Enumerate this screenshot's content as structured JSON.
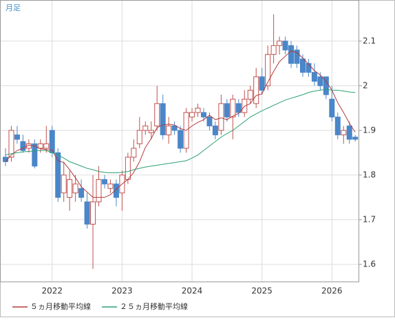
{
  "chart_data": {
    "type": "candlestick",
    "title": "月足",
    "categories": [
      null,
      null,
      null,
      null,
      null,
      null,
      null,
      null,
      "2022",
      null,
      null,
      null,
      null,
      null,
      null,
      null,
      null,
      null,
      null,
      null,
      "2023",
      null,
      null,
      null,
      null,
      null,
      null,
      null,
      null,
      null,
      null,
      null,
      "2024",
      null,
      null,
      null,
      null,
      null,
      null,
      null,
      null,
      null,
      null,
      null,
      "2025",
      null,
      null,
      null,
      null,
      null,
      null,
      null,
      null,
      null,
      null,
      null,
      "2026",
      null,
      null,
      null,
      null
    ],
    "open": [
      1.84,
      1.84,
      1.89,
      1.875,
      1.86,
      1.87,
      1.86,
      1.86,
      1.9,
      1.85,
      1.76,
      1.75,
      1.76,
      1.77,
      1.74,
      1.69,
      1.74,
      1.79,
      1.77,
      1.78,
      1.76,
      1.79,
      1.84,
      1.87,
      1.9,
      1.895,
      1.91,
      1.96,
      1.89,
      1.91,
      1.9,
      1.86,
      1.93,
      1.94,
      1.94,
      1.93,
      1.91,
      1.9,
      1.96,
      1.93,
      1.96,
      1.94,
      1.97,
      1.96,
      2.02,
      2.0,
      2.07,
      2.09,
      2.1,
      2.09,
      2.08,
      2.06,
      2.05,
      2.03,
      2.02,
      2.02,
      1.97,
      1.93,
      1.89,
      1.91,
      1.885
    ],
    "high": [
      1.86,
      1.91,
      1.91,
      1.89,
      1.88,
      1.88,
      1.88,
      1.91,
      1.91,
      1.86,
      1.83,
      1.81,
      1.8,
      1.79,
      1.76,
      1.8,
      1.82,
      1.8,
      1.79,
      1.79,
      1.81,
      1.85,
      1.88,
      1.93,
      1.92,
      1.92,
      2.0,
      1.98,
      1.93,
      1.92,
      1.91,
      1.95,
      1.95,
      1.96,
      1.95,
      1.94,
      1.92,
      1.98,
      1.97,
      1.98,
      1.97,
      1.99,
      2.0,
      2.04,
      2.04,
      2.09,
      2.16,
      2.11,
      2.11,
      2.1,
      2.09,
      2.07,
      2.06,
      2.05,
      2.03,
      2.02,
      2.0,
      1.94,
      1.91,
      1.92,
      1.89
    ],
    "low": [
      1.82,
      1.83,
      1.87,
      1.85,
      1.85,
      1.815,
      1.85,
      1.85,
      1.84,
      1.74,
      1.74,
      1.72,
      1.74,
      1.74,
      1.68,
      1.59,
      1.73,
      1.77,
      1.76,
      1.73,
      1.72,
      1.78,
      1.83,
      1.86,
      1.89,
      1.88,
      1.9,
      1.88,
      1.87,
      1.89,
      1.85,
      1.85,
      1.92,
      1.93,
      1.92,
      1.9,
      1.88,
      1.89,
      1.92,
      1.88,
      1.93,
      1.93,
      1.96,
      1.95,
      1.98,
      1.99,
      2.05,
      2.07,
      2.07,
      2.04,
      2.04,
      2.02,
      2.02,
      2.0,
      1.99,
      1.97,
      1.92,
      1.88,
      1.87,
      1.87,
      1.875
    ],
    "close": [
      1.83,
      1.9,
      1.88,
      1.855,
      1.87,
      1.82,
      1.87,
      1.87,
      1.85,
      1.75,
      1.8,
      1.79,
      1.78,
      1.75,
      1.69,
      1.74,
      1.79,
      1.78,
      1.78,
      1.75,
      1.8,
      1.84,
      1.86,
      1.9,
      1.91,
      1.9,
      1.96,
      1.89,
      1.91,
      1.9,
      1.86,
      1.94,
      1.94,
      1.95,
      1.93,
      1.91,
      1.89,
      1.96,
      1.93,
      1.97,
      1.94,
      1.97,
      1.99,
      2.02,
      1.99,
      2.07,
      2.09,
      2.1,
      2.08,
      2.05,
      2.05,
      2.03,
      2.03,
      2.01,
      2.0,
      1.98,
      1.93,
      1.89,
      1.9,
      1.88,
      1.88
    ],
    "up_color": "#c0504d",
    "down_color": "#4a86c8",
    "series": [
      {
        "name": "５ヵ月移動平均線",
        "color": "#b03a3a",
        "values": [
          1.83,
          1.845,
          1.855,
          1.86,
          1.867,
          1.865,
          1.859,
          1.857,
          1.856,
          1.832,
          1.828,
          1.812,
          1.794,
          1.774,
          1.762,
          1.75,
          1.75,
          1.75,
          1.756,
          1.768,
          1.78,
          1.79,
          1.806,
          1.83,
          1.862,
          1.882,
          1.906,
          1.912,
          1.914,
          1.912,
          1.904,
          1.9,
          1.91,
          1.918,
          1.924,
          1.934,
          1.924,
          1.928,
          1.924,
          1.932,
          1.938,
          1.954,
          1.96,
          1.978,
          1.982,
          2.008,
          2.032,
          2.054,
          2.066,
          2.078,
          2.074,
          2.062,
          2.048,
          2.034,
          2.024,
          2.01,
          1.99,
          1.962,
          1.94,
          1.916,
          1.896
        ]
      },
      {
        "name": "２５ヵ月移動平均線",
        "color": "#2aa070",
        "values": [
          1.845,
          1.848,
          1.85,
          1.852,
          1.853,
          1.854,
          1.855,
          1.855,
          1.85,
          1.845,
          1.838,
          1.83,
          1.825,
          1.82,
          1.815,
          1.812,
          1.808,
          1.806,
          1.805,
          1.805,
          1.806,
          1.808,
          1.812,
          1.815,
          1.818,
          1.82,
          1.822,
          1.824,
          1.826,
          1.828,
          1.83,
          1.832,
          1.838,
          1.845,
          1.855,
          1.865,
          1.875,
          1.885,
          1.893,
          1.9,
          1.91,
          1.92,
          1.93,
          1.937,
          1.944,
          1.95,
          1.956,
          1.962,
          1.968,
          1.972,
          1.976,
          1.98,
          1.985,
          1.988,
          1.99,
          1.992,
          1.99,
          1.99,
          1.988,
          1.986,
          1.985
        ]
      }
    ],
    "ylim": [
      1.5615,
      2.192
    ],
    "yticks": [
      1.6,
      1.7,
      1.8,
      1.9,
      2.0,
      2.1
    ],
    "grid": true
  }
}
